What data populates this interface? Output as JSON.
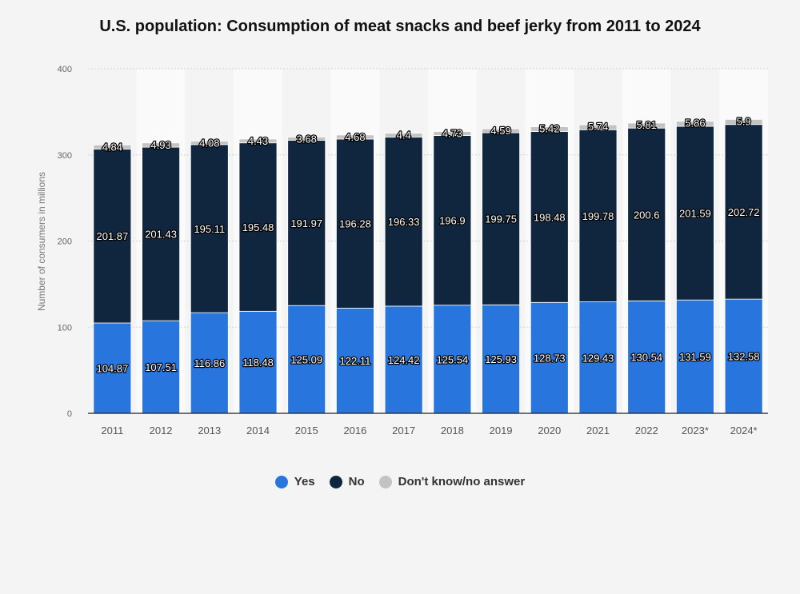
{
  "title": "U.S. population: Consumption of meat snacks and beef jerky from 2011 to 2024",
  "colors": {
    "yes": "#2876dd",
    "no": "#10263f",
    "dk": "#c3c3c3",
    "band": "#fafafa"
  },
  "chart_data": {
    "type": "bar",
    "stacked": true,
    "categories": [
      "2011",
      "2012",
      "2013",
      "2014",
      "2015",
      "2016",
      "2017",
      "2018",
      "2019",
      "2020",
      "2021",
      "2022",
      "2023*",
      "2024*"
    ],
    "series": [
      {
        "name": "Yes",
        "values": [
          104.87,
          107.51,
          116.86,
          118.48,
          125.09,
          122.11,
          124.42,
          125.54,
          125.93,
          128.73,
          129.43,
          130.54,
          131.59,
          132.58
        ],
        "labels": [
          "104.87",
          "107.51",
          "116.86",
          "118.48",
          "125.09",
          "122.11",
          "124.42",
          "125.54",
          "125.93",
          "128.73",
          "129.43",
          "130.54",
          "131.59",
          "132.58"
        ]
      },
      {
        "name": "No",
        "values": [
          201.87,
          201.43,
          195.11,
          195.48,
          191.97,
          196.28,
          196.33,
          196.9,
          199.75,
          198.48,
          199.78,
          200.6,
          201.59,
          202.72
        ],
        "labels": [
          "201.87",
          "201.43",
          "195.11",
          "195.48",
          "191.97",
          "196.28",
          "196.33",
          "196.9",
          "199.75",
          "198.48",
          "199.78",
          "200.6",
          "201.59",
          "202.72"
        ]
      },
      {
        "name": "Don't know/no answer",
        "values": [
          4.84,
          4.93,
          4.08,
          4.43,
          3.68,
          4.68,
          4.4,
          4.73,
          4.59,
          5.42,
          5.74,
          5.81,
          5.86,
          5.9
        ],
        "labels": [
          "4.84",
          "4.93",
          "4.08",
          "4.43",
          "3.68",
          "4.68",
          "4.4",
          "4.73",
          "4.59",
          "5.42",
          "5.74",
          "5.81",
          "5.86",
          "5.9"
        ]
      }
    ],
    "ylabel": "Number of consumers in millions",
    "ylim": [
      0,
      400
    ],
    "yticks": [
      "0",
      "100",
      "200",
      "300",
      "400"
    ],
    "grid": true,
    "legend_position": "bottom"
  }
}
